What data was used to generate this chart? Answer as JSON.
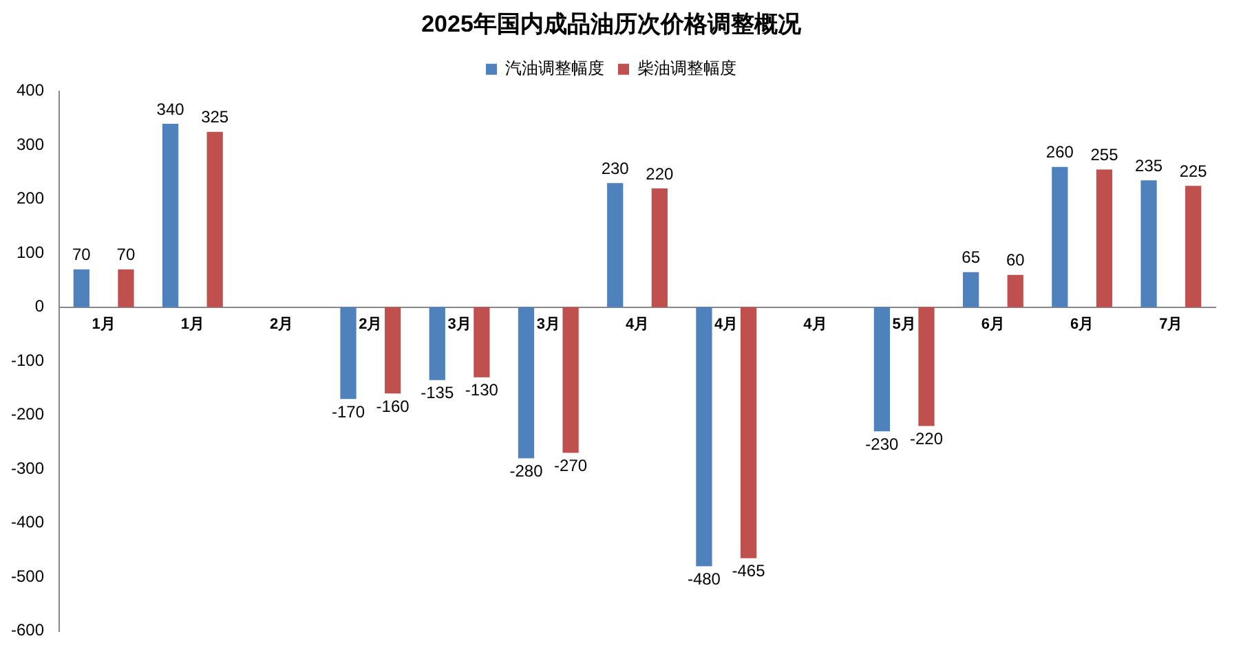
{
  "chart_data": {
    "type": "bar",
    "title": "2025年国内成品油历次价格调整概况",
    "categories": [
      "1月",
      "1月",
      "2月",
      "2月",
      "3月",
      "3月",
      "4月",
      "4月",
      "4月",
      "5月",
      "6月",
      "6月",
      "7月"
    ],
    "series": [
      {
        "name": "汽油调整幅度",
        "color": "#4f81bd",
        "values": [
          70,
          340,
          null,
          -170,
          -135,
          -280,
          230,
          -480,
          null,
          -230,
          65,
          260,
          235
        ]
      },
      {
        "name": "柴油调整幅度",
        "color": "#c0504d",
        "values": [
          70,
          325,
          null,
          -160,
          -130,
          -270,
          220,
          -465,
          null,
          -220,
          60,
          255,
          225
        ]
      }
    ],
    "ylim": [
      -600,
      400
    ],
    "yticks": [
      -600,
      -500,
      -400,
      -300,
      -200,
      -100,
      0,
      100,
      200,
      300,
      400
    ],
    "grid": false,
    "legend": "top",
    "data_labels": true
  }
}
